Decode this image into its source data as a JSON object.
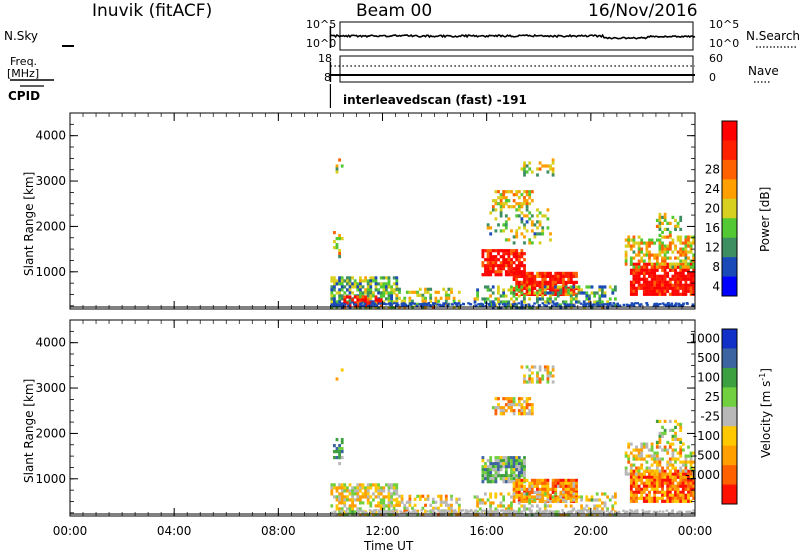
{
  "header": {
    "station": "Inuvik (fitACF)",
    "beam": "Beam 00",
    "date": "16/Nov/2016"
  },
  "noise_panel": {
    "left_label": "N.Sky",
    "left_ticks": [
      "10^5",
      "10^0"
    ],
    "right_label": "N.Search",
    "right_ticks": [
      "10^5",
      "10^0"
    ]
  },
  "freq_panel": {
    "left_label_1": "Freq.",
    "left_label_2": "[MHz]",
    "left_ticks": [
      "18",
      "8"
    ],
    "right_label": "Nave",
    "right_ticks": [
      "60",
      "0"
    ]
  },
  "cpid": {
    "label": "CPID",
    "program": "interleavedscan (fast) -191"
  },
  "colors": {
    "power_scale": [
      "#0000ff",
      "#1a4ab8",
      "#3d8f61",
      "#52c832",
      "#d8d020",
      "#ffa000",
      "#ff6000",
      "#ff2000",
      "#ff0000"
    ],
    "velocity_scale": [
      "#1030c8",
      "#3c64a0",
      "#3ca040",
      "#70d040",
      "#b8b8b8",
      "#ffc800",
      "#ffa000",
      "#ff6000",
      "#ff1000"
    ]
  },
  "chart_data": [
    {
      "type": "heatmap",
      "name": "power",
      "ylabel": "Slant Range [km]",
      "yticks": [
        1000,
        2000,
        3000,
        4000
      ],
      "ylim": [
        180,
        4500
      ],
      "xlim": [
        0,
        24
      ],
      "colorbar": {
        "label": "Power [dB]",
        "ticks": [
          "4",
          "8",
          "12",
          "16",
          "20",
          "24",
          "28"
        ]
      },
      "echo_regions": [
        {
          "t0": 10.0,
          "t1": 12.6,
          "r0": 200,
          "r1": 900,
          "level": 0.35,
          "density": 0.65
        },
        {
          "t0": 10.5,
          "t1": 12.0,
          "r0": 220,
          "r1": 480,
          "level": 0.9,
          "density": 0.7
        },
        {
          "t0": 12.5,
          "t1": 15.0,
          "r0": 220,
          "r1": 650,
          "level": 0.45,
          "density": 0.45
        },
        {
          "t0": 10.1,
          "t1": 10.5,
          "r0": 1300,
          "r1": 1900,
          "level": 0.5,
          "density": 0.4
        },
        {
          "t0": 10.2,
          "t1": 10.5,
          "r0": 3150,
          "r1": 3500,
          "level": 0.45,
          "density": 0.35
        },
        {
          "t0": 15.8,
          "t1": 17.5,
          "r0": 900,
          "r1": 1500,
          "level": 0.92,
          "density": 0.85
        },
        {
          "t0": 17.0,
          "t1": 19.5,
          "r0": 500,
          "r1": 1000,
          "level": 0.88,
          "density": 0.85
        },
        {
          "t0": 15.5,
          "t1": 21.0,
          "r0": 200,
          "r1": 700,
          "level": 0.35,
          "density": 0.4
        },
        {
          "t0": 16.2,
          "t1": 17.8,
          "r0": 2400,
          "r1": 2800,
          "level": 0.55,
          "density": 0.6
        },
        {
          "t0": 17.3,
          "t1": 18.6,
          "r0": 3100,
          "r1": 3500,
          "level": 0.45,
          "density": 0.45
        },
        {
          "t0": 16.0,
          "t1": 18.5,
          "r0": 1600,
          "r1": 2400,
          "level": 0.4,
          "density": 0.25
        },
        {
          "t0": 21.5,
          "t1": 24.0,
          "r0": 500,
          "r1": 1200,
          "level": 0.95,
          "density": 0.9
        },
        {
          "t0": 21.3,
          "t1": 24.0,
          "r0": 1100,
          "r1": 1800,
          "level": 0.55,
          "density": 0.55
        },
        {
          "t0": 22.5,
          "t1": 23.5,
          "r0": 1800,
          "r1": 2300,
          "level": 0.45,
          "density": 0.45
        }
      ]
    },
    {
      "type": "heatmap",
      "name": "velocity",
      "ylabel": "Slant Range [km]",
      "xlabel": "Time UT",
      "xticks": [
        "00:00",
        "04:00",
        "08:00",
        "12:00",
        "16:00",
        "20:00",
        "00:00"
      ],
      "yticks": [
        1000,
        2000,
        3000,
        4000
      ],
      "ylim": [
        180,
        4500
      ],
      "xlim": [
        0,
        24
      ],
      "colorbar": {
        "label": "Velocity [m s^-1]",
        "ticks": [
          "1000",
          "500",
          "100",
          "25",
          "-25",
          "-100",
          "-500",
          "-1000"
        ]
      },
      "echo_regions": [
        {
          "t0": 10.0,
          "t1": 12.6,
          "r0": 200,
          "r1": 900,
          "level": 0.55,
          "density": 0.65
        },
        {
          "t0": 12.5,
          "t1": 15.0,
          "r0": 220,
          "r1": 650,
          "level": 0.6,
          "density": 0.45
        },
        {
          "t0": 10.1,
          "t1": 10.5,
          "r0": 1300,
          "r1": 1900,
          "level": 0.35,
          "density": 0.4
        },
        {
          "t0": 10.2,
          "t1": 10.5,
          "r0": 3150,
          "r1": 3500,
          "level": 0.55,
          "density": 0.35
        },
        {
          "t0": 15.8,
          "t1": 17.5,
          "r0": 900,
          "r1": 1500,
          "level": 0.35,
          "density": 0.85
        },
        {
          "t0": 17.0,
          "t1": 19.5,
          "r0": 500,
          "r1": 1000,
          "level": 0.72,
          "density": 0.85
        },
        {
          "t0": 15.5,
          "t1": 21.0,
          "r0": 200,
          "r1": 700,
          "level": 0.55,
          "density": 0.4
        },
        {
          "t0": 16.2,
          "t1": 17.8,
          "r0": 2400,
          "r1": 2800,
          "level": 0.65,
          "density": 0.6
        },
        {
          "t0": 17.3,
          "t1": 18.6,
          "r0": 3100,
          "r1": 3500,
          "level": 0.6,
          "density": 0.45
        },
        {
          "t0": 21.5,
          "t1": 24.0,
          "r0": 500,
          "r1": 1200,
          "level": 0.8,
          "density": 0.9
        },
        {
          "t0": 21.3,
          "t1": 24.0,
          "r0": 1100,
          "r1": 1800,
          "level": 0.6,
          "density": 0.55
        },
        {
          "t0": 22.5,
          "t1": 23.5,
          "r0": 1800,
          "r1": 2300,
          "level": 0.5,
          "density": 0.45
        }
      ]
    }
  ]
}
